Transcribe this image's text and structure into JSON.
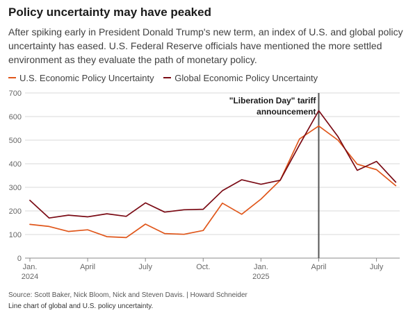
{
  "title": "Policy uncertainty may have peaked",
  "subtitle": "After spiking early in President Donald Trump's new term, an index of U.S. and global policy uncertainty has eased. U.S. Federal Reserve officials have mentioned the more settled environment as they evaluate the path of monetary policy.",
  "source": "Source: Scott Baker, Nick Bloom, Nick and Steven Davis. | Howard Schneider",
  "note": "Line chart of global and U.S. policy uncertainty.",
  "colors": {
    "us": "#e0561a",
    "global": "#7a0a14",
    "grid": "#d9d9d9",
    "axis": "#888888",
    "marker": "#555555"
  },
  "chart_data": {
    "type": "line",
    "x": [
      "2024-01",
      "2024-02",
      "2024-03",
      "2024-04",
      "2024-05",
      "2024-06",
      "2024-07",
      "2024-08",
      "2024-09",
      "2024-10",
      "2024-11",
      "2024-12",
      "2025-01",
      "2025-02",
      "2025-03",
      "2025-04",
      "2025-05",
      "2025-06",
      "2025-07",
      "2025-08"
    ],
    "series": [
      {
        "name": "U.S. Economic Policy Uncertainty",
        "values": [
          143,
          134,
          113,
          120,
          91,
          87,
          144,
          104,
          101,
          117,
          233,
          186,
          250,
          330,
          505,
          560,
          500,
          398,
          375,
          307
        ]
      },
      {
        "name": "Global Economic Policy Uncertainty",
        "values": [
          245,
          170,
          182,
          175,
          188,
          177,
          234,
          195,
          205,
          207,
          286,
          332,
          313,
          330,
          480,
          625,
          515,
          372,
          410,
          322
        ]
      }
    ],
    "ylim": [
      0,
      700
    ],
    "yticks": [
      "0",
      "100",
      "200",
      "300",
      "400",
      "500",
      "600",
      "700"
    ],
    "xticks": [
      {
        "at": "2024-01",
        "label": "Jan.",
        "sublabel": "2024"
      },
      {
        "at": "2024-04",
        "label": "April",
        "sublabel": ""
      },
      {
        "at": "2024-07",
        "label": "July",
        "sublabel": ""
      },
      {
        "at": "2024-10",
        "label": "Oct.",
        "sublabel": ""
      },
      {
        "at": "2025-01",
        "label": "Jan.",
        "sublabel": "2025"
      },
      {
        "at": "2025-04",
        "label": "April",
        "sublabel": ""
      },
      {
        "at": "2025-07",
        "label": "July",
        "sublabel": ""
      }
    ],
    "annotations": [
      {
        "at": "2025-04",
        "lines": [
          "\"Liberation Day\" tariff",
          "announcement"
        ]
      }
    ],
    "grid": true,
    "legend": "top-left"
  }
}
